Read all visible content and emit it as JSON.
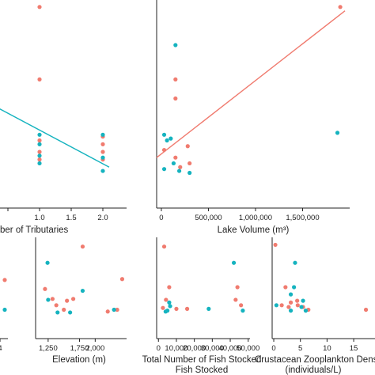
{
  "colors": {
    "red": "#f07b6f",
    "teal": "#15b3bf",
    "axis": "#222222"
  },
  "chart_data": [
    {
      "type": "scatter",
      "xlabel": "ber of Tributaries",
      "ylabel": "",
      "xlim": [
        -0.05,
        2.25
      ],
      "ylim": [
        0,
        1
      ],
      "xticks": [
        {
          "value": 0.0,
          "label": ""
        },
        {
          "value": 0.5,
          "label": ""
        },
        {
          "value": 1.0,
          "label": "1.0"
        },
        {
          "value": 1.5,
          "label": "1.5"
        },
        {
          "value": 2.0,
          "label": "2.0"
        }
      ],
      "grid": false,
      "series": [
        {
          "color": "red",
          "points": [
            [
              1,
              0.98
            ],
            [
              1,
              0.6
            ],
            [
              1,
              0.28
            ],
            [
              1,
              0.22
            ],
            [
              1,
              0.18
            ],
            [
              2,
              0.3
            ],
            [
              2,
              0.26
            ],
            [
              2,
              0.22
            ],
            [
              2,
              0.18
            ]
          ]
        },
        {
          "color": "teal",
          "points": [
            [
              1,
              0.31
            ],
            [
              1,
              0.26
            ],
            [
              1,
              0.2
            ],
            [
              1,
              0.16
            ],
            [
              2,
              0.31
            ],
            [
              2,
              0.19
            ],
            [
              2,
              0.12
            ]
          ]
        }
      ],
      "fit_lines": [
        {
          "color": "teal",
          "from": [
            -0.05,
            0.52
          ],
          "to": [
            2.1,
            0.14
          ]
        }
      ]
    },
    {
      "type": "scatter",
      "xlabel": "Lake Volume (m³)",
      "ylabel": "",
      "xlim": [
        -50000,
        2000000
      ],
      "ylim": [
        0,
        1
      ],
      "xticks": [
        {
          "value": 0,
          "label": "0"
        },
        {
          "value": 500000,
          "label": "500,000"
        },
        {
          "value": 1000000,
          "label": "1,000,000"
        },
        {
          "value": 1500000,
          "label": "1,500,000"
        }
      ],
      "grid": false,
      "series": [
        {
          "color": "red",
          "points": [
            [
              1900000,
              0.98
            ],
            [
              150000,
              0.6
            ],
            [
              150000,
              0.5
            ],
            [
              30000,
              0.23
            ],
            [
              150000,
              0.19
            ],
            [
              280000,
              0.25
            ],
            [
              300000,
              0.16
            ],
            [
              200000,
              0.14
            ]
          ]
        },
        {
          "color": "teal",
          "points": [
            [
              150000,
              0.78
            ],
            [
              30000,
              0.31
            ],
            [
              100000,
              0.29
            ],
            [
              60000,
              0.28
            ],
            [
              130000,
              0.16
            ],
            [
              190000,
              0.12
            ],
            [
              30000,
              0.13
            ],
            [
              1870000,
              0.32
            ],
            [
              300000,
              0.11
            ]
          ]
        }
      ],
      "fit_lines": [
        {
          "color": "red",
          "from": [
            -50000,
            0.19
          ],
          "to": [
            1950000,
            0.96
          ]
        }
      ]
    },
    {
      "type": "scatter",
      "xlabel": "",
      "ylabel": "",
      "xlim": [
        0,
        1
      ],
      "ylim": [
        0,
        1
      ],
      "xticks": [
        {
          "value": 0.0,
          "label": "4"
        }
      ],
      "grid": false,
      "series": [
        {
          "color": "red",
          "points": [
            [
              0.2,
              0.58
            ]
          ]
        },
        {
          "color": "teal",
          "points": [
            [
              0.2,
              0.25
            ]
          ]
        }
      ],
      "fit_lines": []
    },
    {
      "type": "scatter",
      "xlabel": "Elevation (m)",
      "ylabel": "",
      "xlim": [
        1050,
        2500
      ],
      "ylim": [
        0,
        1
      ],
      "xticks": [
        {
          "value": 1250,
          "label": "1,250"
        },
        {
          "value": 1750,
          "label": "1,750"
        },
        {
          "value": 2000,
          "label": "2,000"
        }
      ],
      "grid": false,
      "series": [
        {
          "color": "red",
          "points": [
            [
              1800,
              0.95
            ],
            [
              1200,
              0.48
            ],
            [
              1320,
              0.37
            ],
            [
              1380,
              0.3
            ],
            [
              1550,
              0.35
            ],
            [
              1650,
              0.37
            ],
            [
              1500,
              0.25
            ],
            [
              2200,
              0.23
            ],
            [
              2350,
              0.25
            ],
            [
              2430,
              0.59
            ]
          ]
        },
        {
          "color": "teal",
          "points": [
            [
              1240,
              0.77
            ],
            [
              1400,
              0.22
            ],
            [
              1600,
              0.22
            ],
            [
              1800,
              0.46
            ],
            [
              2300,
              0.25
            ],
            [
              1250,
              0.36
            ]
          ]
        }
      ],
      "fit_lines": []
    },
    {
      "type": "scatter",
      "xlabel": "Total Number of Fish Stocked",
      "ylabel": "",
      "xlim": [
        -1000,
        51000
      ],
      "ylim": [
        0,
        1
      ],
      "xticks": [
        {
          "value": 0,
          "label": "0"
        },
        {
          "value": 10000,
          "label": "10,000"
        },
        {
          "value": 20000,
          "label": "20,000"
        },
        {
          "value": 30000,
          "label": "30,000"
        },
        {
          "value": 40000,
          "label": "40,000"
        },
        {
          "value": 50000,
          "label": "50,000"
        }
      ],
      "grid": false,
      "series": [
        {
          "color": "red",
          "points": [
            [
              3200,
              0.95
            ],
            [
              6000,
              0.5
            ],
            [
              4200,
              0.36
            ],
            [
              2500,
              0.27
            ],
            [
              10000,
              0.26
            ],
            [
              16000,
              0.26
            ],
            [
              44000,
              0.5
            ],
            [
              46000,
              0.3
            ],
            [
              43000,
              0.36
            ]
          ]
        },
        {
          "color": "teal",
          "points": [
            [
              6500,
              0.29
            ],
            [
              4000,
              0.23
            ],
            [
              5000,
              0.24
            ],
            [
              28000,
              0.26
            ],
            [
              42000,
              0.77
            ],
            [
              47000,
              0.24
            ],
            [
              6000,
              0.33
            ]
          ]
        }
      ],
      "fit_lines": []
    },
    {
      "type": "scatter",
      "xlabel": "Crustacean Zooplankton Density",
      "ylabel": "",
      "xlim": [
        -0.3,
        19
      ],
      "ylim": [
        0,
        1
      ],
      "xticks": [
        {
          "value": 0,
          "label": "0"
        },
        {
          "value": 5,
          "label": "5"
        },
        {
          "value": 10,
          "label": "10"
        },
        {
          "value": 15,
          "label": "15"
        }
      ],
      "grid": false,
      "series": [
        {
          "color": "red",
          "points": [
            [
              0.3,
              0.97
            ],
            [
              2.2,
              0.5
            ],
            [
              4.4,
              0.35
            ],
            [
              3.2,
              0.33
            ],
            [
              1.5,
              0.3
            ],
            [
              2.8,
              0.28
            ],
            [
              5.5,
              0.28
            ],
            [
              6.5,
              0.25
            ],
            [
              4.5,
              0.3
            ],
            [
              17.3,
              0.25
            ]
          ]
        },
        {
          "color": "teal",
          "points": [
            [
              4.0,
              0.77
            ],
            [
              3.8,
              0.5
            ],
            [
              3.2,
              0.42
            ],
            [
              5.5,
              0.35
            ],
            [
              3.2,
              0.24
            ],
            [
              0.5,
              0.3
            ],
            [
              5.2,
              0.28
            ],
            [
              6.0,
              0.24
            ]
          ]
        }
      ],
      "fit_lines": []
    }
  ],
  "xlabel_second_line": [
    "",
    "",
    "",
    "",
    "Fish Stocked",
    "(individuals/L)"
  ]
}
